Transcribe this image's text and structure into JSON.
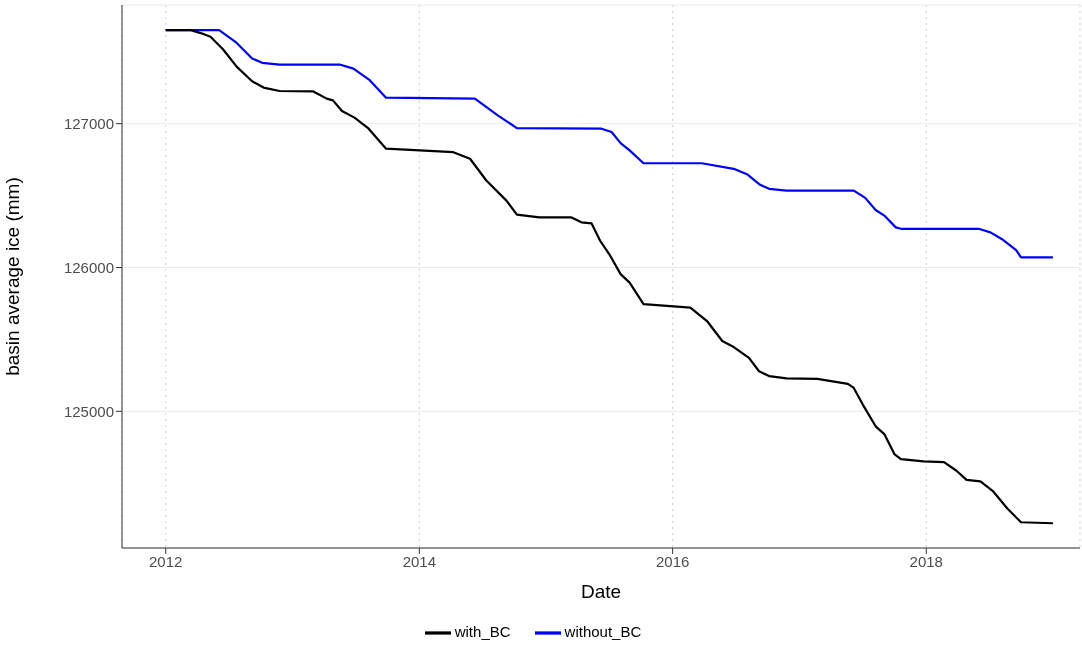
{
  "chart_data": {
    "type": "line",
    "xlabel": "Date",
    "ylabel": "basin average ice (mm)",
    "xlim": [
      "2011-08-28",
      "2019-03-20"
    ],
    "xticks": [
      "2012",
      "2014",
      "2016",
      "2018"
    ],
    "ylim": [
      124050,
      127825
    ],
    "yticks": [
      125000,
      126000,
      127000
    ],
    "grid": true,
    "legend": "bottom",
    "line_style": "solid",
    "marker": "none",
    "series": [
      {
        "name": "without_BC",
        "color": "#0000ff",
        "x": [
          "2012-01-01",
          "2012-06-03",
          "2012-07-20",
          "2012-09-06",
          "2012-10-05",
          "2012-11-24",
          "2013-05-16",
          "2013-06-25",
          "2013-08-11",
          "2013-09-27",
          "2014-06-10",
          "2014-08-15",
          "2014-10-09",
          "2015-06-10",
          "2015-07-09",
          "2015-08-04",
          "2015-08-30",
          "2015-10-09",
          "2016-03-25",
          "2016-06-25",
          "2016-08-04",
          "2016-09-09",
          "2016-10-05",
          "2016-11-24",
          "2017-06-06",
          "2017-07-09",
          "2017-08-08",
          "2017-09-02",
          "2017-10-05",
          "2017-10-23",
          "2018-06-03",
          "2018-07-05",
          "2018-08-11",
          "2018-09-17",
          "2018-10-01",
          "2019-01-01"
        ],
        "values": [
          127650,
          127650,
          127569,
          127453,
          127423,
          127411,
          127411,
          127383,
          127302,
          127181,
          127174,
          127058,
          126969,
          126965,
          126942,
          126865,
          126814,
          126725,
          126725,
          126686,
          126646,
          126575,
          126547,
          126535,
          126535,
          126484,
          126400,
          126361,
          126279,
          126268,
          126268,
          126244,
          126191,
          126121,
          126070,
          126070
        ]
      },
      {
        "name": "with_BC",
        "color": "#000000",
        "x": [
          "2012-01-01",
          "2012-03-14",
          "2012-04-13",
          "2012-05-09",
          "2012-06-14",
          "2012-07-24",
          "2012-09-06",
          "2012-10-09",
          "2012-11-24",
          "2013-02-28",
          "2013-04-09",
          "2013-04-27",
          "2013-05-23",
          "2013-06-28",
          "2013-08-08",
          "2013-09-27",
          "2014-04-09",
          "2014-05-27",
          "2014-07-13",
          "2014-09-09",
          "2014-10-09",
          "2014-12-13",
          "2015-03-14",
          "2015-04-13",
          "2015-05-12",
          "2015-06-06",
          "2015-07-05",
          "2015-08-04",
          "2015-08-30",
          "2015-10-09",
          "2016-02-21",
          "2016-04-09",
          "2016-05-23",
          "2016-06-25",
          "2016-08-08",
          "2016-09-06",
          "2016-10-05",
          "2016-11-24",
          "2017-02-21",
          "2017-05-20",
          "2017-06-06",
          "2017-07-02",
          "2017-08-08",
          "2017-09-02",
          "2017-10-01",
          "2017-10-20",
          "2017-12-24",
          "2018-02-21",
          "2018-03-29",
          "2018-04-27",
          "2018-06-06",
          "2018-07-13",
          "2018-08-22",
          "2018-10-01",
          "2019-01-01"
        ],
        "values": [
          127650,
          127650,
          127628,
          127604,
          127517,
          127395,
          127295,
          127251,
          127227,
          127225,
          127174,
          127162,
          127088,
          127042,
          126965,
          126826,
          126802,
          126756,
          126605,
          126465,
          126368,
          126349,
          126349,
          126314,
          126307,
          126186,
          126082,
          125954,
          125895,
          125745,
          125721,
          125628,
          125489,
          125447,
          125372,
          125279,
          125245,
          125229,
          125226,
          125191,
          125163,
          125047,
          124896,
          124842,
          124703,
          124668,
          124652,
          124647,
          124587,
          124524,
          124513,
          124443,
          124326,
          124229,
          124222
        ]
      }
    ]
  }
}
